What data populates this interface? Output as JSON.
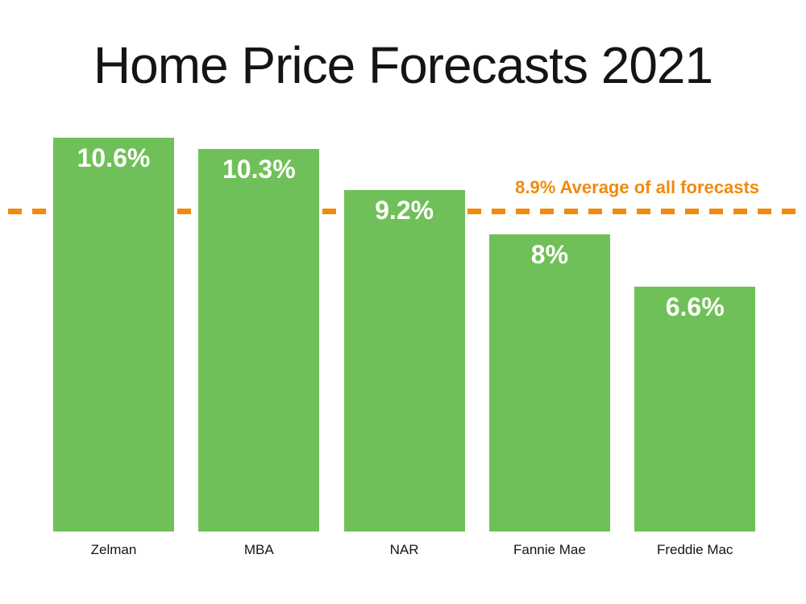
{
  "title": "Home Price Forecasts 2021",
  "colors": {
    "bar_green": "#6FC058",
    "accent_orange": "#F18A0D",
    "text_black": "#141414",
    "bar_label_white": "#FFFFFF",
    "background": "#FFFFFF"
  },
  "chart_data": {
    "type": "bar",
    "title": "Home Price Forecasts 2021",
    "categories": [
      "Zelman",
      "MBA",
      "NAR",
      "Fannie Mae",
      "Freddie Mac"
    ],
    "values": [
      10.6,
      10.3,
      9.2,
      8,
      6.6
    ],
    "value_labels": [
      "10.6%",
      "10.3%",
      "9.2%",
      "8%",
      "6.6%"
    ],
    "xlabel": "",
    "ylabel": "",
    "ylim": [
      0,
      11.3
    ],
    "grid": false,
    "legend": "none",
    "value_label_position": "inside-top",
    "reference_line": {
      "value": 8.9,
      "label": "8.9% Average of all forecasts",
      "style": "dashed",
      "color": "#F18A0D",
      "label_position": "above-line-right"
    }
  }
}
